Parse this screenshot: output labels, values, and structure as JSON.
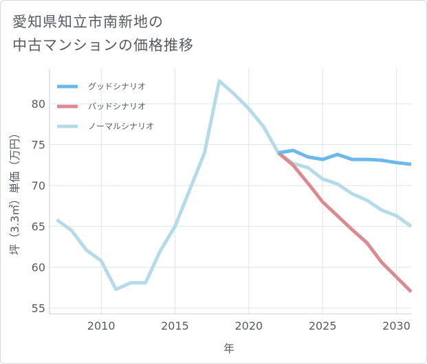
{
  "header": {
    "title_line1": "愛知県知立市南新地の",
    "title_line2": "中古マンションの価格推移"
  },
  "chart_data": {
    "type": "line",
    "title": "愛知県知立市南新地の中古マンションの価格推移",
    "xlabel": "年",
    "ylabel": "坪（3.3㎡）単価（万円）",
    "xlim": [
      2006.5,
      2031
    ],
    "ylim": [
      54.3,
      84.3
    ],
    "x_ticks": [
      2010,
      2015,
      2020,
      2025,
      2030
    ],
    "y_ticks": [
      55,
      60,
      65,
      70,
      75,
      80
    ],
    "grid": true,
    "legend_position": "top-left",
    "series": [
      {
        "name": "グッドシナリオ",
        "color": "#6ab8ec",
        "x": [
          2022,
          2023,
          2024,
          2025,
          2026,
          2027,
          2028,
          2029,
          2030,
          2031
        ],
        "values": [
          74.0,
          74.3,
          73.5,
          73.2,
          73.8,
          73.2,
          73.2,
          73.1,
          72.8,
          72.6
        ]
      },
      {
        "name": "バッドシナリオ",
        "color": "#dc8a92",
        "x": [
          2022,
          2023,
          2024,
          2025,
          2026,
          2027,
          2028,
          2029,
          2030,
          2031
        ],
        "values": [
          74.0,
          72.5,
          70.3,
          68.0,
          66.3,
          64.6,
          63.0,
          60.6,
          58.8,
          57.0
        ]
      },
      {
        "name": "ノーマルシナリオ",
        "color": "#b5dbe9",
        "x": [
          2007,
          2008,
          2009,
          2010,
          2011,
          2012,
          2013,
          2014,
          2015,
          2016,
          2017,
          2018,
          2019,
          2020,
          2021,
          2022,
          2023,
          2024,
          2025,
          2026,
          2027,
          2028,
          2029,
          2030,
          2031
        ],
        "values": [
          65.8,
          64.5,
          62.1,
          60.8,
          57.3,
          58.1,
          58.1,
          62.0,
          65.0,
          69.5,
          74.0,
          82.8,
          81.2,
          79.4,
          77.2,
          74.0,
          72.7,
          72.2,
          70.8,
          70.2,
          69.0,
          68.2,
          67.0,
          66.3,
          65.0
        ]
      }
    ]
  }
}
